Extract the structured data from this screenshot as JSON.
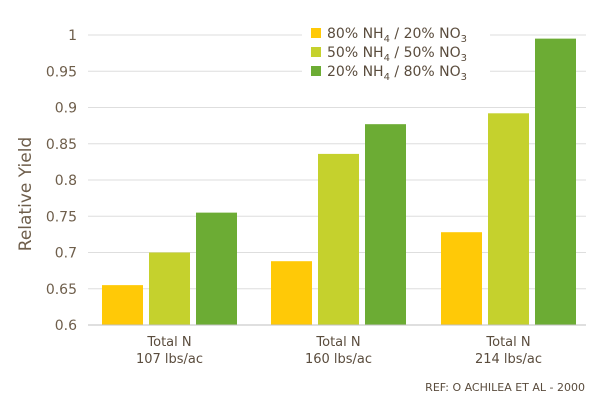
{
  "chart_data": {
    "type": "bar",
    "ylabel": "Relative Yield",
    "xlabel": "",
    "ylim": [
      0.6,
      1.0
    ],
    "yticks": [
      "0.6",
      "0.65",
      "0.7",
      "0.75",
      "0.8",
      "0.85",
      "0.9",
      "0.95",
      "1"
    ],
    "grid": true,
    "legend_position": "top-right",
    "categories": [
      {
        "line1": "Total N",
        "line2": "107 lbs/ac"
      },
      {
        "line1": "Total N",
        "line2": "160 lbs/ac"
      },
      {
        "line1": "Total N",
        "line2": "214 lbs/ac"
      }
    ],
    "series": [
      {
        "name": "80% NH4 / 20% NO3",
        "legend": {
          "p1": "80% NH",
          "s1": "4",
          "p2": " / 20% NO",
          "s2": "3"
        },
        "color": "#ffc907",
        "values": [
          0.655,
          0.688,
          0.728
        ]
      },
      {
        "name": "50% NH4 / 50% NO3",
        "legend": {
          "p1": "50% NH",
          "s1": "4",
          "p2": " / 50% NO",
          "s2": "3"
        },
        "color": "#c5d12d",
        "values": [
          0.7,
          0.836,
          0.892
        ]
      },
      {
        "name": "20% NH4 / 80% NO3",
        "legend": {
          "p1": "20% NH",
          "s1": "4",
          "p2": " / 80% NO",
          "s2": "3"
        },
        "color": "#6cac34",
        "values": [
          0.755,
          0.877,
          0.995
        ]
      }
    ],
    "reference": "REF: O ACHILEA  ET AL - 2000"
  },
  "colors": {
    "grid": "#dedede",
    "axis": "#bfbfbf",
    "text": "#6e5e4b"
  }
}
